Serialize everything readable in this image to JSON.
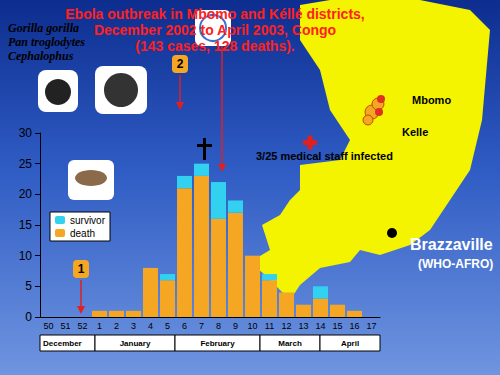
{
  "chart_data": {
    "type": "bar",
    "title": "Ebola outbreak in Mbomo and Kéllé districts,\nDecember 2002 to April 2003, Congo\n(143 cases, 128 deaths).",
    "categories": [
      "50",
      "51",
      "52",
      "1",
      "2",
      "3",
      "4",
      "5",
      "6",
      "7",
      "8",
      "9",
      "10",
      "11",
      "12",
      "13",
      "14",
      "15",
      "16",
      "17"
    ],
    "series": [
      {
        "name": "death",
        "color": "#f5a623",
        "values": [
          0,
          0,
          0,
          1,
          1,
          1,
          8,
          6,
          21,
          23,
          16,
          17,
          10,
          6,
          4,
          2,
          3,
          2,
          1,
          0
        ]
      },
      {
        "name": "survivor",
        "color": "#33d1f0",
        "values": [
          0,
          0,
          0,
          0,
          0,
          0,
          0,
          1,
          2,
          2,
          6,
          2,
          0,
          1,
          0,
          0,
          2,
          0,
          0,
          0
        ]
      }
    ],
    "stacked": true,
    "ylim": [
      0,
      30
    ],
    "yticks": [
      0,
      5,
      10,
      15,
      20,
      25,
      30
    ],
    "grid": false,
    "legend": "left",
    "species": [
      "Gorilla gorilla",
      "Pan troglodytes",
      "Cephalophus"
    ],
    "markers": [
      "1",
      "2"
    ],
    "note": "3/25 medical staff infected",
    "places": [
      "Mbomo",
      "Kelle",
      "Brazzaville",
      "(WHO-AFRO)"
    ],
    "periods": [
      "December",
      "January",
      "February",
      "March",
      "April"
    ]
  }
}
